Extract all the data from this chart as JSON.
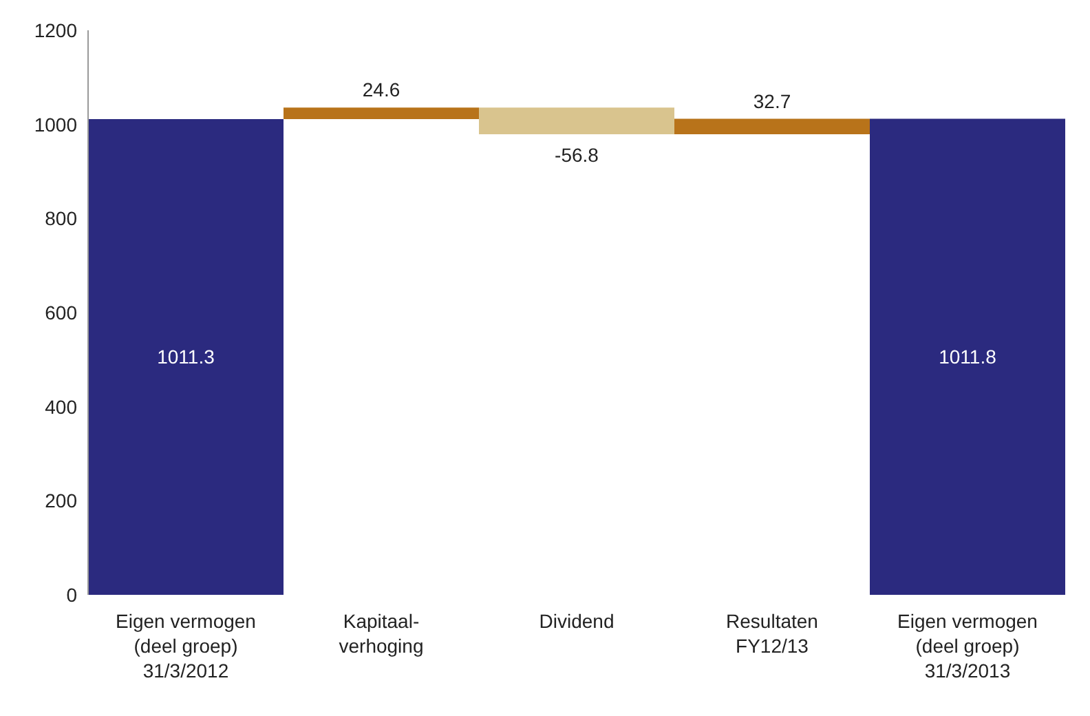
{
  "chart_data": {
    "type": "bar",
    "categories": [
      "Eigen vermogen\n(deel groep)\n31/3/2012",
      "Kapitaal-\nverhoging",
      "Dividend",
      "Resultaten\nFY12/13",
      "Eigen vermogen\n(deel groep)\n31/3/2013"
    ],
    "values": [
      1011.3,
      24.6,
      -56.8,
      32.7,
      1011.8
    ],
    "base": [
      0,
      1011.3,
      1035.9,
      979.1,
      0
    ],
    "colors": [
      "#2b2a7f",
      "#b8731a",
      "#d9c48e",
      "#b8731a",
      "#2b2a7f"
    ],
    "ylim": [
      0,
      1200
    ],
    "yticks": [
      0,
      200,
      400,
      600,
      800,
      1000,
      1200
    ],
    "grid": false,
    "data_labels": true
  }
}
